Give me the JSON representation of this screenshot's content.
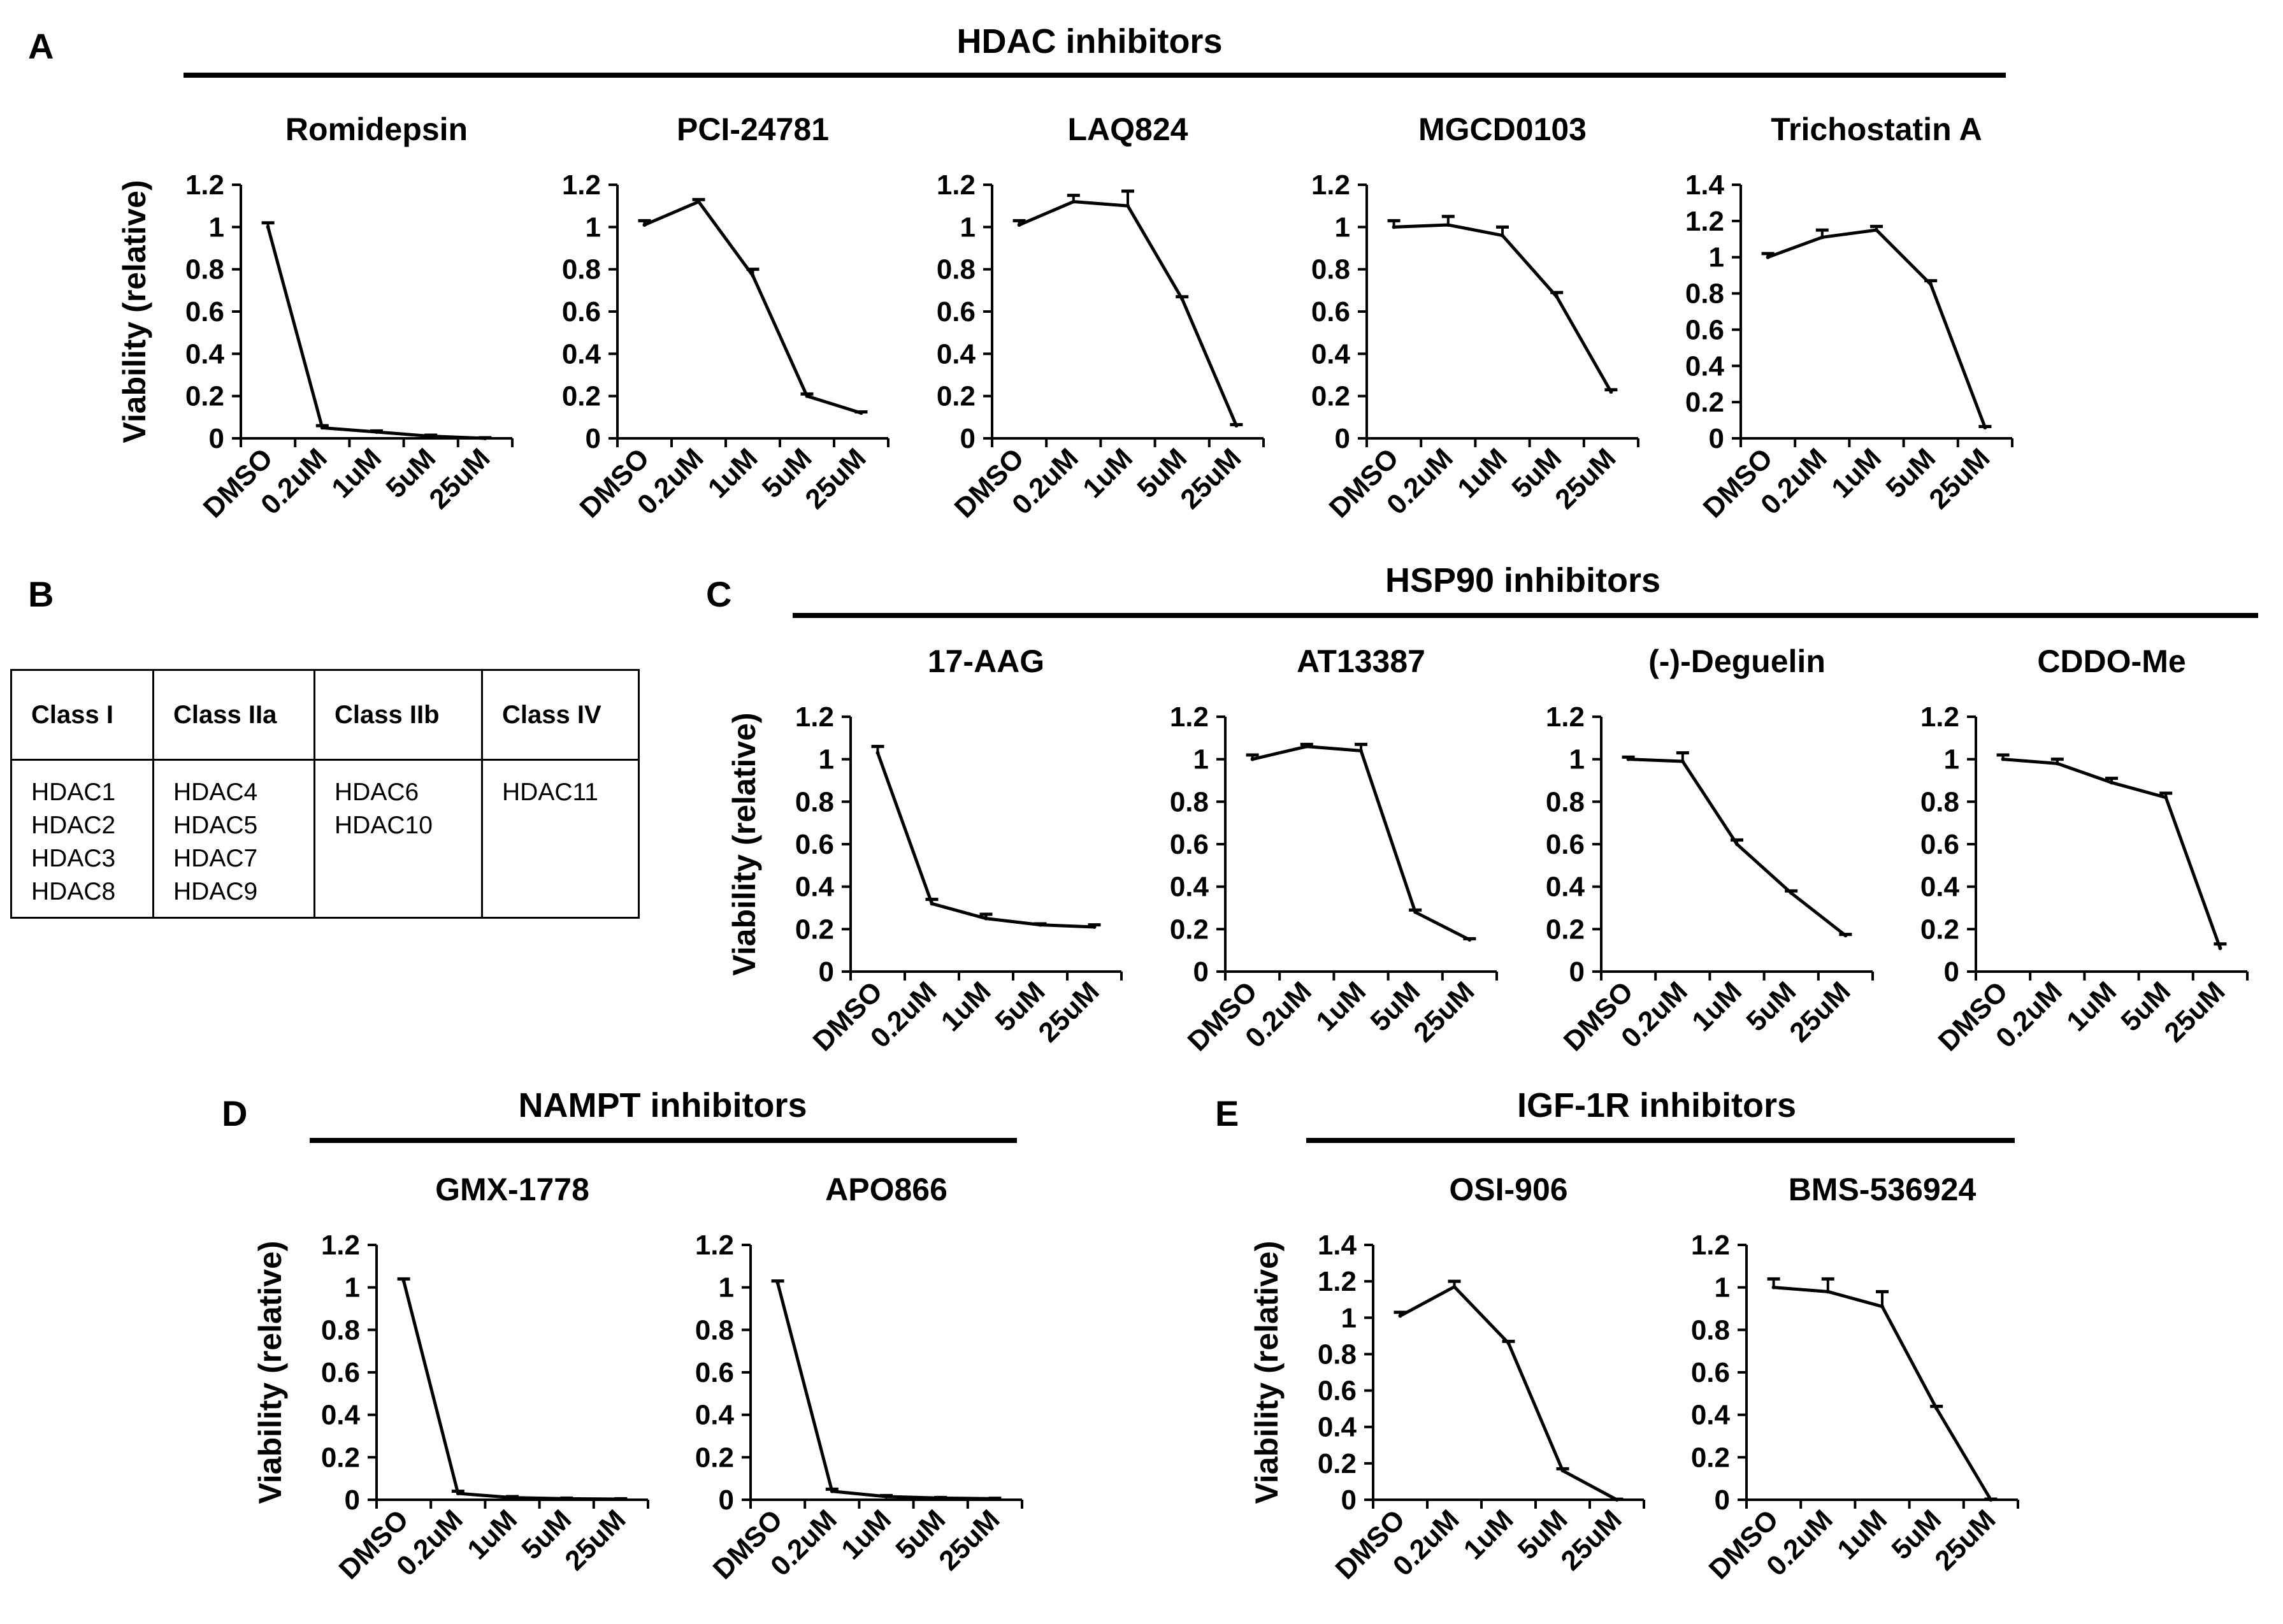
{
  "panels": {
    "A": "A",
    "B": "B",
    "C": "C",
    "D": "D",
    "E": "E"
  },
  "groups": {
    "hdac": "HDAC inhibitors",
    "hsp90": "HSP90 inhibitors",
    "nampt": "NAMPT inhibitors",
    "igf1r": "IGF-1R inhibitors"
  },
  "hdac_table": {
    "headers": [
      "Class I",
      "Class IIa",
      "Class IIb",
      "Class IV"
    ],
    "columns": [
      [
        "HDAC1",
        "HDAC2",
        "HDAC3",
        "HDAC8"
      ],
      [
        "HDAC4",
        "HDAC5",
        "HDAC7",
        "HDAC9"
      ],
      [
        "HDAC6",
        "HDAC10"
      ],
      [
        "HDAC11"
      ]
    ]
  },
  "chart_data": [
    {
      "type": "line",
      "title": "Romidepsin",
      "ylabel": "Viability (relative)",
      "categories": [
        "DMSO",
        "0.2uM",
        "1uM",
        "5uM",
        "25uM"
      ],
      "values": [
        1.0,
        0.05,
        0.03,
        0.01,
        0.0
      ],
      "errors": [
        0.02,
        0.01,
        0.005,
        0.005,
        0.003
      ],
      "ylim": [
        0,
        1.2
      ],
      "yticks": [
        "0",
        "0.2",
        "0.4",
        "0.6",
        "0.8",
        "1",
        "1.2"
      ]
    },
    {
      "type": "line",
      "title": "PCI-24781",
      "ylabel": "",
      "categories": [
        "DMSO",
        "0.2uM",
        "1uM",
        "5uM",
        "25uM"
      ],
      "values": [
        1.01,
        1.12,
        0.77,
        0.2,
        0.12
      ],
      "errors": [
        0.02,
        0.01,
        0.03,
        0.01,
        0.005
      ],
      "ylim": [
        0,
        1.2
      ],
      "yticks": [
        "0",
        "0.2",
        "0.4",
        "0.6",
        "0.8",
        "1",
        "1.2"
      ]
    },
    {
      "type": "line",
      "title": "LAQ824",
      "ylabel": "",
      "categories": [
        "DMSO",
        "0.2uM",
        "1uM",
        "5uM",
        "25uM"
      ],
      "values": [
        1.01,
        1.12,
        1.1,
        0.66,
        0.06
      ],
      "errors": [
        0.02,
        0.03,
        0.07,
        0.01,
        0.005
      ],
      "ylim": [
        0,
        1.2
      ],
      "yticks": [
        "0",
        "0.2",
        "0.4",
        "0.6",
        "0.8",
        "1",
        "1.2"
      ]
    },
    {
      "type": "line",
      "title": "MGCD0103",
      "ylabel": "",
      "categories": [
        "DMSO",
        "0.2uM",
        "1uM",
        "5uM",
        "25uM"
      ],
      "values": [
        1.0,
        1.01,
        0.96,
        0.67,
        0.22
      ],
      "errors": [
        0.03,
        0.04,
        0.04,
        0.02,
        0.01
      ],
      "ylim": [
        0,
        1.2
      ],
      "yticks": [
        "0",
        "0.2",
        "0.4",
        "0.6",
        "0.8",
        "1",
        "1.2"
      ]
    },
    {
      "type": "line",
      "title": "Trichostatin A",
      "ylabel": "",
      "categories": [
        "DMSO",
        "0.2uM",
        "1uM",
        "5uM",
        "25uM"
      ],
      "values": [
        1.0,
        1.11,
        1.15,
        0.85,
        0.06
      ],
      "errors": [
        0.02,
        0.04,
        0.02,
        0.02,
        0.005
      ],
      "ylim": [
        0,
        1.4
      ],
      "yticks": [
        "0",
        "0.2",
        "0.4",
        "0.6",
        "0.8",
        "1",
        "1.2",
        "1.4"
      ]
    },
    {
      "type": "line",
      "title": "17-AAG",
      "ylabel": "Viability (relative)",
      "categories": [
        "DMSO",
        "0.2uM",
        "1uM",
        "5uM",
        "25uM"
      ],
      "values": [
        1.03,
        0.32,
        0.25,
        0.22,
        0.21
      ],
      "errors": [
        0.03,
        0.02,
        0.02,
        0.005,
        0.01
      ],
      "ylim": [
        0,
        1.2
      ],
      "yticks": [
        "0",
        "0.2",
        "0.4",
        "0.6",
        "0.8",
        "1",
        "1.2"
      ]
    },
    {
      "type": "line",
      "title": "AT13387",
      "ylabel": "",
      "categories": [
        "DMSO",
        "0.2uM",
        "1uM",
        "5uM",
        "25uM"
      ],
      "values": [
        1.0,
        1.06,
        1.04,
        0.28,
        0.15
      ],
      "errors": [
        0.02,
        0.01,
        0.03,
        0.01,
        0.005
      ],
      "ylim": [
        0,
        1.2
      ],
      "yticks": [
        "0",
        "0.2",
        "0.4",
        "0.6",
        "0.8",
        "1",
        "1.2"
      ]
    },
    {
      "type": "line",
      "title": "(-)-Deguelin",
      "ylabel": "",
      "categories": [
        "DMSO",
        "0.2uM",
        "1uM",
        "5uM",
        "25uM"
      ],
      "values": [
        1.0,
        0.99,
        0.6,
        0.37,
        0.17
      ],
      "errors": [
        0.01,
        0.04,
        0.02,
        0.01,
        0.005
      ],
      "ylim": [
        0,
        1.2
      ],
      "yticks": [
        "0",
        "0.2",
        "0.4",
        "0.6",
        "0.8",
        "1",
        "1.2"
      ]
    },
    {
      "type": "line",
      "title": "CDDO-Me",
      "ylabel": "",
      "categories": [
        "DMSO",
        "0.2uM",
        "1uM",
        "5uM",
        "25uM"
      ],
      "values": [
        1.0,
        0.98,
        0.89,
        0.82,
        0.11
      ],
      "errors": [
        0.02,
        0.02,
        0.02,
        0.02,
        0.02
      ],
      "ylim": [
        0,
        1.2
      ],
      "yticks": [
        "0",
        "0.2",
        "0.4",
        "0.6",
        "0.8",
        "1",
        "1.2"
      ]
    },
    {
      "type": "line",
      "title": "GMX-1778",
      "ylabel": "Viability (relative)",
      "categories": [
        "DMSO",
        "0.2uM",
        "1uM",
        "5uM",
        "25uM"
      ],
      "values": [
        1.03,
        0.03,
        0.01,
        0.005,
        0.003
      ],
      "errors": [
        0.01,
        0.01,
        0.005,
        0.003,
        0.002
      ],
      "ylim": [
        0,
        1.2
      ],
      "yticks": [
        "0",
        "0.2",
        "0.4",
        "0.6",
        "0.8",
        "1",
        "1.2"
      ]
    },
    {
      "type": "line",
      "title": "APO866",
      "ylabel": "",
      "categories": [
        "DMSO",
        "0.2uM",
        "1uM",
        "5uM",
        "25uM"
      ],
      "values": [
        1.02,
        0.04,
        0.015,
        0.008,
        0.005
      ],
      "errors": [
        0.01,
        0.01,
        0.005,
        0.003,
        0.002
      ],
      "ylim": [
        0,
        1.2
      ],
      "yticks": [
        "0",
        "0.2",
        "0.4",
        "0.6",
        "0.8",
        "1",
        "1.2"
      ]
    },
    {
      "type": "line",
      "title": "OSI-906",
      "ylabel": "Viability (relative)",
      "categories": [
        "DMSO",
        "0.2uM",
        "1uM",
        "5uM",
        "25uM"
      ],
      "values": [
        1.01,
        1.17,
        0.86,
        0.16,
        0.0
      ],
      "errors": [
        0.02,
        0.03,
        0.01,
        0.01,
        0.003
      ],
      "ylim": [
        0,
        1.4
      ],
      "yticks": [
        "0",
        "0.2",
        "0.4",
        "0.6",
        "0.8",
        "1",
        "1.2",
        "1.4"
      ]
    },
    {
      "type": "line",
      "title": "BMS-536924",
      "ylabel": "",
      "categories": [
        "DMSO",
        "0.2uM",
        "1uM",
        "5uM",
        "25uM"
      ],
      "values": [
        1.0,
        0.98,
        0.91,
        0.43,
        0.0
      ],
      "errors": [
        0.04,
        0.06,
        0.07,
        0.01,
        0.003
      ],
      "ylim": [
        0,
        1.2
      ],
      "yticks": [
        "0",
        "0.2",
        "0.4",
        "0.6",
        "0.8",
        "1",
        "1.2"
      ]
    }
  ]
}
